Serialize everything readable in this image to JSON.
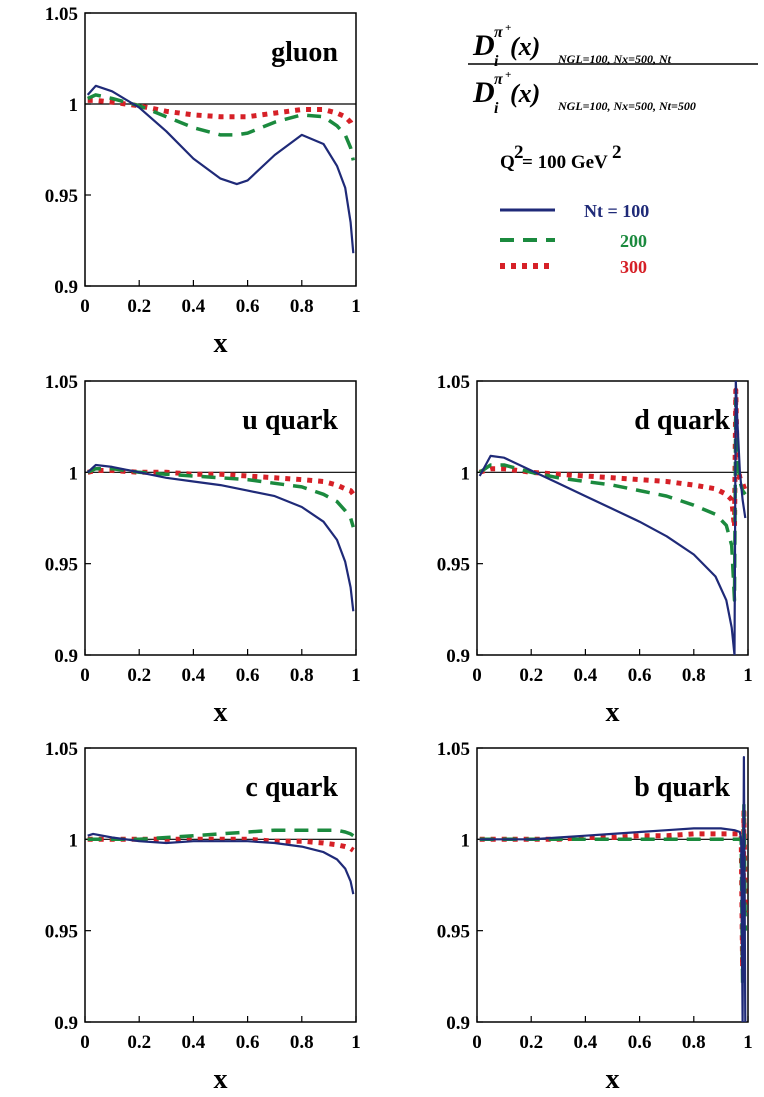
{
  "formula": {
    "num_main": "D",
    "num_sub": "i",
    "num_sup": "π",
    "num_supplus": "+",
    "num_arg": " (x)",
    "num_args": "NGL=100, Nx=500, Nt",
    "den_main": "D",
    "den_sub": "i",
    "den_sup": "π",
    "den_supplus": "+",
    "den_arg": " (x)",
    "den_args": "NGL=100, Nx=500, Nt=500"
  },
  "q2_label": "Q",
  "q2_exp": "2",
  "q2_rest": " = 100 GeV",
  "q2_unit_exp": "2",
  "legend": [
    {
      "label": "Nt = 100",
      "color": "#1f2a78",
      "dash": "solid"
    },
    {
      "label": "200",
      "color": "#1b8a3e",
      "dash": "dashed"
    },
    {
      "label": "300",
      "color": "#d62027",
      "dash": "dotted"
    }
  ],
  "chart_data": [
    {
      "type": "line",
      "title": "gluon",
      "xlabel": "x",
      "ylabel": "",
      "xlim": [
        0,
        1
      ],
      "ylim": [
        0.9,
        1.05
      ],
      "xticks": [
        "0",
        "0.2",
        "0.4",
        "0.6",
        "0.8",
        "1"
      ],
      "yticks": [
        "0.9",
        "0.95",
        "1",
        "1.05"
      ],
      "reference_line": 1,
      "x": [
        0.01,
        0.04,
        0.1,
        0.2,
        0.3,
        0.4,
        0.5,
        0.56,
        0.6,
        0.7,
        0.8,
        0.88,
        0.93,
        0.96,
        0.98,
        0.99
      ],
      "series": [
        {
          "name": "Nt = 100",
          "values": [
            1.005,
            1.01,
            1.007,
            0.998,
            0.985,
            0.97,
            0.959,
            0.956,
            0.958,
            0.972,
            0.983,
            0.978,
            0.966,
            0.954,
            0.935,
            0.918
          ]
        },
        {
          "name": "200",
          "values": [
            1.003,
            1.005,
            1.003,
            0.999,
            0.993,
            0.987,
            0.983,
            0.983,
            0.984,
            0.99,
            0.994,
            0.993,
            0.988,
            0.983,
            0.976,
            0.969
          ]
        },
        {
          "name": "300",
          "values": [
            1.002,
            1.002,
            1.001,
            0.999,
            0.996,
            0.994,
            0.993,
            0.993,
            0.993,
            0.995,
            0.997,
            0.997,
            0.995,
            0.993,
            0.99,
            0.987
          ]
        }
      ]
    },
    {
      "type": "line",
      "title": "u quark",
      "xlabel": "x",
      "ylabel": "",
      "xlim": [
        0,
        1
      ],
      "ylim": [
        0.9,
        1.05
      ],
      "xticks": [
        "0",
        "0.2",
        "0.4",
        "0.6",
        "0.8",
        "1"
      ],
      "yticks": [
        "0.9",
        "0.95",
        "1",
        "1.05"
      ],
      "reference_line": 1,
      "x": [
        0.01,
        0.04,
        0.1,
        0.2,
        0.3,
        0.4,
        0.5,
        0.6,
        0.7,
        0.8,
        0.88,
        0.93,
        0.96,
        0.98,
        0.99
      ],
      "series": [
        {
          "name": "Nt = 100",
          "values": [
            1.0,
            1.004,
            1.003,
            1.0,
            0.997,
            0.995,
            0.993,
            0.99,
            0.987,
            0.981,
            0.973,
            0.963,
            0.951,
            0.937,
            0.924
          ]
        },
        {
          "name": "200",
          "values": [
            1.0,
            1.002,
            1.002,
            1.0,
            0.999,
            0.998,
            0.997,
            0.996,
            0.994,
            0.992,
            0.988,
            0.984,
            0.979,
            0.975,
            0.97
          ]
        },
        {
          "name": "300",
          "values": [
            1.0,
            1.001,
            1.001,
            1.0,
            1.0,
            0.999,
            0.999,
            0.998,
            0.997,
            0.996,
            0.995,
            0.993,
            0.991,
            0.99,
            0.988
          ]
        }
      ]
    },
    {
      "type": "line",
      "title": "d quark",
      "xlabel": "x",
      "ylabel": "",
      "xlim": [
        0,
        1
      ],
      "ylim": [
        0.9,
        1.05
      ],
      "xticks": [
        "0",
        "0.2",
        "0.4",
        "0.6",
        "0.8",
        "1"
      ],
      "yticks": [
        "0.9",
        "0.95",
        "1",
        "1.05"
      ],
      "reference_line": 1,
      "x": [
        0.01,
        0.05,
        0.1,
        0.2,
        0.3,
        0.4,
        0.5,
        0.6,
        0.7,
        0.8,
        0.88,
        0.92,
        0.94,
        0.95,
        0.955,
        0.96,
        0.97,
        0.98,
        0.99
      ],
      "series": [
        {
          "name": "Nt = 100",
          "values": [
            0.998,
            1.009,
            1.008,
            1.001,
            0.994,
            0.987,
            0.98,
            0.973,
            0.965,
            0.955,
            0.943,
            0.93,
            0.915,
            0.9,
            1.05,
            1.03,
            1.0,
            0.985,
            0.975
          ]
        },
        {
          "name": "200",
          "values": [
            1.0,
            1.004,
            1.004,
            1.0,
            0.997,
            0.995,
            0.993,
            0.99,
            0.987,
            0.982,
            0.977,
            0.971,
            0.96,
            0.93,
            1.04,
            1.01,
            0.995,
            0.99,
            0.988
          ]
        },
        {
          "name": "300",
          "values": [
            1.0,
            1.002,
            1.002,
            1.0,
            0.999,
            0.998,
            0.997,
            0.996,
            0.995,
            0.993,
            0.991,
            0.988,
            0.985,
            0.97,
            1.045,
            1.005,
            0.997,
            0.994,
            0.99
          ]
        }
      ]
    },
    {
      "type": "line",
      "title": "c quark",
      "xlabel": "x",
      "ylabel": "",
      "xlim": [
        0,
        1
      ],
      "ylim": [
        0.9,
        1.05
      ],
      "xticks": [
        "0",
        "0.2",
        "0.4",
        "0.6",
        "0.8",
        "1"
      ],
      "yticks": [
        "0.9",
        "0.95",
        "1",
        "1.05"
      ],
      "reference_line": 1,
      "x": [
        0.01,
        0.03,
        0.1,
        0.2,
        0.3,
        0.4,
        0.5,
        0.6,
        0.7,
        0.8,
        0.88,
        0.93,
        0.96,
        0.98,
        0.99
      ],
      "series": [
        {
          "name": "Nt = 100",
          "values": [
            1.002,
            1.003,
            1.001,
            0.999,
            0.998,
            0.999,
            0.999,
            0.999,
            0.998,
            0.996,
            0.993,
            0.989,
            0.984,
            0.977,
            0.97
          ]
        },
        {
          "name": "200",
          "values": [
            1.0,
            1.0,
            1.0,
            1.0,
            1.001,
            1.002,
            1.003,
            1.004,
            1.005,
            1.005,
            1.005,
            1.005,
            1.004,
            1.003,
            1.002
          ]
        },
        {
          "name": "300",
          "values": [
            1.0,
            1.0,
            1.0,
            1.0,
            1.0,
            1.0,
            1.0,
            1.0,
            0.999,
            0.999,
            0.998,
            0.997,
            0.996,
            0.995,
            0.994
          ]
        }
      ]
    },
    {
      "type": "line",
      "title": "b quark",
      "xlabel": "x",
      "ylabel": "",
      "xlim": [
        0,
        1
      ],
      "ylim": [
        0.9,
        1.05
      ],
      "xticks": [
        "0",
        "0.2",
        "0.4",
        "0.6",
        "0.8",
        "1"
      ],
      "yticks": [
        "0.9",
        "0.95",
        "1",
        "1.05"
      ],
      "reference_line": 1,
      "x": [
        0.01,
        0.1,
        0.2,
        0.3,
        0.4,
        0.5,
        0.6,
        0.7,
        0.8,
        0.9,
        0.95,
        0.97,
        0.975,
        0.98,
        0.985,
        0.99
      ],
      "series": [
        {
          "name": "Nt = 100",
          "values": [
            1.0,
            1.0,
            1.0,
            1.001,
            1.002,
            1.003,
            1.004,
            1.005,
            1.006,
            1.006,
            1.005,
            1.004,
            1.0,
            0.9,
            1.045,
            0.9
          ]
        },
        {
          "name": "200",
          "values": [
            1.0,
            1.0,
            1.0,
            1.0,
            1.0,
            1.0,
            1.0,
            1.0,
            1.0,
            1.0,
            1.0,
            1.0,
            1.0,
            0.92,
            1.02,
            0.95
          ]
        },
        {
          "name": "300",
          "values": [
            1.0,
            1.0,
            1.0,
            1.0,
            1.001,
            1.001,
            1.002,
            1.002,
            1.003,
            1.003,
            1.003,
            1.003,
            1.003,
            0.93,
            1.015,
            0.96
          ]
        }
      ]
    }
  ]
}
